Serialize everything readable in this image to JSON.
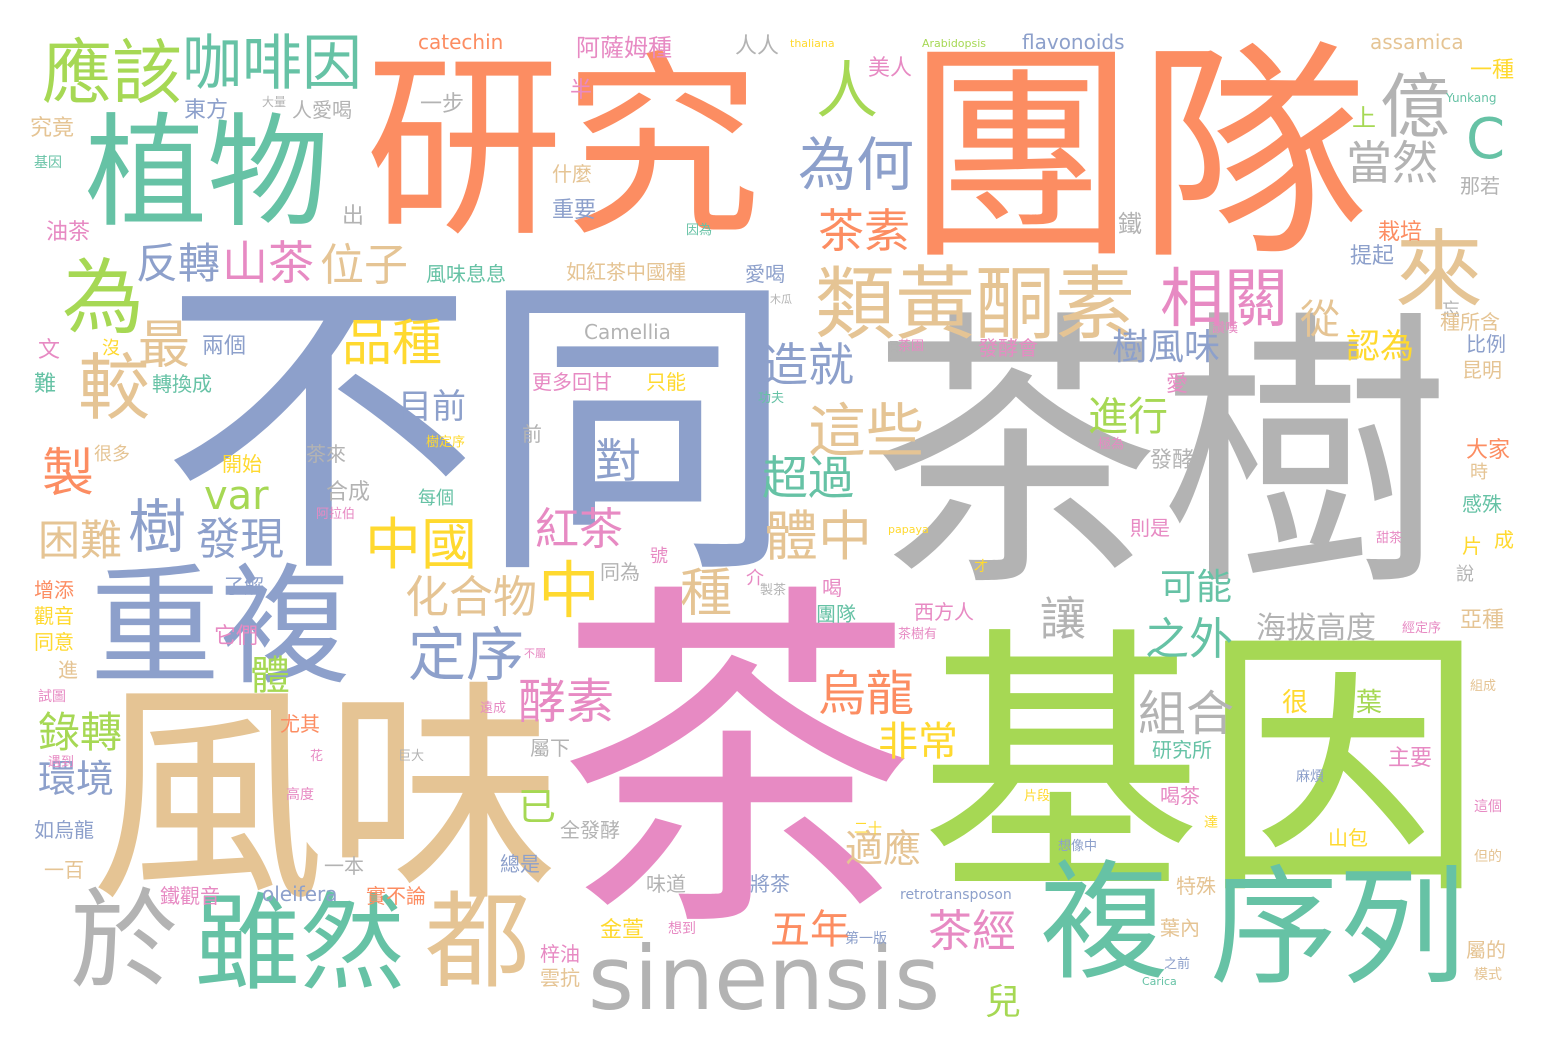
{
  "palette": {
    "orange": "#fc8d62",
    "blue": "#8da0cb",
    "pink": "#e78ac3",
    "green": "#a6d854",
    "yellow": "#ffd92f",
    "tan": "#e5c494",
    "gray": "#b3b3b3",
    "teal": "#66c2a5"
  },
  "words": [
    {
      "text": "研究",
      "color": "orange"
    },
    {
      "text": "團隊",
      "color": "orange"
    },
    {
      "text": "不同",
      "color": "blue"
    },
    {
      "text": "茶樹",
      "color": "gray"
    },
    {
      "text": "茶",
      "color": "pink"
    },
    {
      "text": "基因",
      "color": "green"
    },
    {
      "text": "風味",
      "color": "tan"
    },
    {
      "text": "重複",
      "color": "blue"
    },
    {
      "text": "植物",
      "color": "teal"
    },
    {
      "text": "序列",
      "color": "teal"
    },
    {
      "text": "複",
      "color": "teal"
    },
    {
      "text": "sinensis",
      "color": "gray"
    },
    {
      "text": "於",
      "color": "gray"
    },
    {
      "text": "雖然",
      "color": "teal"
    },
    {
      "text": "都",
      "color": "tan"
    },
    {
      "text": "類黃酮素",
      "color": "tan"
    },
    {
      "text": "應該",
      "color": "green"
    },
    {
      "text": "咖啡因",
      "color": "teal"
    },
    {
      "text": "為",
      "color": "green"
    },
    {
      "text": "較",
      "color": "tan"
    },
    {
      "text": "來",
      "color": "tan"
    },
    {
      "text": "億",
      "color": "gray"
    },
    {
      "text": "相關",
      "color": "pink"
    },
    {
      "text": "為何",
      "color": "blue"
    },
    {
      "text": "人",
      "color": "green"
    },
    {
      "text": "C",
      "color": "teal"
    },
    {
      "text": "當然",
      "color": "gray"
    },
    {
      "text": "茶素",
      "color": "orange"
    },
    {
      "text": "反轉",
      "color": "blue"
    },
    {
      "text": "山茶",
      "color": "pink"
    },
    {
      "text": "位子",
      "color": "tan"
    },
    {
      "text": "品種",
      "color": "yellow"
    },
    {
      "text": "最",
      "color": "tan"
    },
    {
      "text": "造就",
      "color": "blue"
    },
    {
      "text": "這些",
      "color": "tan"
    },
    {
      "text": "樹風味",
      "color": "blue"
    },
    {
      "text": "進行",
      "color": "green"
    },
    {
      "text": "從",
      "color": "tan"
    },
    {
      "text": "認為",
      "color": "yellow"
    },
    {
      "text": "對",
      "color": "blue"
    },
    {
      "text": "目前",
      "color": "blue"
    },
    {
      "text": "製",
      "color": "orange"
    },
    {
      "text": "var",
      "color": "green"
    },
    {
      "text": "樹",
      "color": "blue"
    },
    {
      "text": "發現",
      "color": "blue"
    },
    {
      "text": "中國",
      "color": "yellow"
    },
    {
      "text": "紅茶",
      "color": "pink"
    },
    {
      "text": "體中",
      "color": "tan"
    },
    {
      "text": "超過",
      "color": "teal"
    },
    {
      "text": "困難",
      "color": "tan"
    },
    {
      "text": "中",
      "color": "yellow"
    },
    {
      "text": "化合物",
      "color": "tan"
    },
    {
      "text": "種",
      "color": "tan"
    },
    {
      "text": "定序",
      "color": "blue"
    },
    {
      "text": "可能",
      "color": "teal"
    },
    {
      "text": "之外",
      "color": "teal"
    },
    {
      "text": "讓",
      "color": "gray"
    },
    {
      "text": "海拔高度",
      "color": "gray"
    },
    {
      "text": "酵素",
      "color": "pink"
    },
    {
      "text": "烏龍",
      "color": "orange"
    },
    {
      "text": "組合",
      "color": "gray"
    },
    {
      "text": "非常",
      "color": "yellow"
    },
    {
      "text": "錄轉",
      "color": "green"
    },
    {
      "text": "環境",
      "color": "blue"
    },
    {
      "text": "體",
      "color": "green"
    },
    {
      "text": "已",
      "color": "green"
    },
    {
      "text": "適應",
      "color": "tan"
    },
    {
      "text": "五年",
      "color": "orange"
    },
    {
      "text": "茶經",
      "color": "pink"
    },
    {
      "text": "兒",
      "color": "green"
    },
    {
      "text": "catechin",
      "color": "orange"
    },
    {
      "text": "flavonoids",
      "color": "blue"
    },
    {
      "text": "assamica",
      "color": "tan"
    },
    {
      "text": "阿薩姆種",
      "color": "pink"
    },
    {
      "text": "人人",
      "color": "gray"
    },
    {
      "text": "thaliana",
      "color": "yellow"
    },
    {
      "text": "Arabidopsis",
      "color": "green"
    },
    {
      "text": "美人",
      "color": "pink"
    },
    {
      "text": "東方",
      "color": "blue"
    },
    {
      "text": "人愛喝",
      "color": "gray"
    },
    {
      "text": "大量",
      "color": "gray"
    },
    {
      "text": "一步",
      "color": "gray"
    },
    {
      "text": "半",
      "color": "pink"
    },
    {
      "text": "一種",
      "color": "yellow"
    },
    {
      "text": "上",
      "color": "green"
    },
    {
      "text": "Yunkang",
      "color": "teal"
    },
    {
      "text": "究竟",
      "color": "tan"
    },
    {
      "text": "基因",
      "color": "teal"
    },
    {
      "text": "什麼",
      "color": "tan"
    },
    {
      "text": "那若",
      "color": "gray"
    },
    {
      "text": "出",
      "color": "gray"
    },
    {
      "text": "重要",
      "color": "blue"
    },
    {
      "text": "栽培",
      "color": "orange"
    },
    {
      "text": "油茶",
      "color": "pink"
    },
    {
      "text": "因為",
      "color": "teal"
    },
    {
      "text": "鐵",
      "color": "gray"
    },
    {
      "text": "風味息息",
      "color": "teal"
    },
    {
      "text": "如紅茶中國種",
      "color": "tan"
    },
    {
      "text": "愛喝",
      "color": "blue"
    },
    {
      "text": "提起",
      "color": "blue"
    },
    {
      "text": "木瓜",
      "color": "gray"
    },
    {
      "text": "Camellia",
      "color": "gray"
    },
    {
      "text": "忘",
      "color": "gray"
    },
    {
      "text": "種所含",
      "color": "tan"
    },
    {
      "text": "文",
      "color": "pink"
    },
    {
      "text": "沒",
      "color": "yellow"
    },
    {
      "text": "兩個",
      "color": "blue"
    },
    {
      "text": "則",
      "color": "gray"
    },
    {
      "text": "茶園",
      "color": "pink"
    },
    {
      "text": "發酵會",
      "color": "pink"
    },
    {
      "text": "讚嘆",
      "color": "pink"
    },
    {
      "text": "比例",
      "color": "blue"
    },
    {
      "text": "難",
      "color": "teal"
    },
    {
      "text": "轉換成",
      "color": "teal"
    },
    {
      "text": "更多回甘",
      "color": "pink"
    },
    {
      "text": "只能",
      "color": "yellow"
    },
    {
      "text": "愛",
      "color": "pink"
    },
    {
      "text": "昆明",
      "color": "tan"
    },
    {
      "text": "功夫",
      "color": "teal"
    },
    {
      "text": "很多",
      "color": "tan"
    },
    {
      "text": "樹定序",
      "color": "yellow"
    },
    {
      "text": "茶來",
      "color": "gray"
    },
    {
      "text": "前",
      "color": "gray"
    },
    {
      "text": "極為",
      "color": "pink"
    },
    {
      "text": "開始",
      "color": "yellow"
    },
    {
      "text": "發酵",
      "color": "gray"
    },
    {
      "text": "大家",
      "color": "orange"
    },
    {
      "text": "時",
      "color": "tan"
    },
    {
      "text": "合成",
      "color": "gray"
    },
    {
      "text": "每個",
      "color": "teal"
    },
    {
      "text": "阿拉伯",
      "color": "pink"
    },
    {
      "text": "感殊",
      "color": "teal"
    },
    {
      "text": "則是",
      "color": "pink"
    },
    {
      "text": "papaya",
      "color": "yellow"
    },
    {
      "text": "甜茶",
      "color": "pink"
    },
    {
      "text": "片",
      "color": "yellow"
    },
    {
      "text": "成",
      "color": "yellow"
    },
    {
      "text": "說",
      "color": "gray"
    },
    {
      "text": "增添",
      "color": "orange"
    },
    {
      "text": "了解",
      "color": "blue"
    },
    {
      "text": "同為",
      "color": "gray"
    },
    {
      "text": "號",
      "color": "pink"
    },
    {
      "text": "介",
      "color": "pink"
    },
    {
      "text": "製茶",
      "color": "gray"
    },
    {
      "text": "喝",
      "color": "pink"
    },
    {
      "text": "才",
      "color": "yellow"
    },
    {
      "text": "觀音",
      "color": "yellow"
    },
    {
      "text": "它們",
      "color": "pink"
    },
    {
      "text": "團隊",
      "color": "teal"
    },
    {
      "text": "西方人",
      "color": "pink"
    },
    {
      "text": "茶樹有",
      "color": "pink"
    },
    {
      "text": "經定序",
      "color": "pink"
    },
    {
      "text": "亞種",
      "color": "tan"
    },
    {
      "text": "同意",
      "color": "yellow"
    },
    {
      "text": "進",
      "color": "tan"
    },
    {
      "text": "不屬",
      "color": "pink"
    },
    {
      "text": "組成",
      "color": "tan"
    },
    {
      "text": "試圖",
      "color": "pink"
    },
    {
      "text": "尤其",
      "color": "orange"
    },
    {
      "text": "遠成",
      "color": "pink"
    },
    {
      "text": "屬下",
      "color": "gray"
    },
    {
      "text": "很",
      "color": "yellow"
    },
    {
      "text": "葉",
      "color": "green"
    },
    {
      "text": "遇到",
      "color": "pink"
    },
    {
      "text": "花",
      "color": "pink"
    },
    {
      "text": "巨大",
      "color": "gray"
    },
    {
      "text": "研究所",
      "color": "teal"
    },
    {
      "text": "主要",
      "color": "pink"
    },
    {
      "text": "麻煩",
      "color": "blue"
    },
    {
      "text": "高度",
      "color": "pink"
    },
    {
      "text": "片段",
      "color": "yellow"
    },
    {
      "text": "喝茶",
      "color": "pink"
    },
    {
      "text": "這個",
      "color": "pink"
    },
    {
      "text": "如烏龍",
      "color": "blue"
    },
    {
      "text": "二十",
      "color": "yellow"
    },
    {
      "text": "全發酵",
      "color": "gray"
    },
    {
      "text": "山包",
      "color": "yellow"
    },
    {
      "text": "達",
      "color": "yellow"
    },
    {
      "text": "想像中",
      "color": "blue"
    },
    {
      "text": "但的",
      "color": "tan"
    },
    {
      "text": "一百",
      "color": "tan"
    },
    {
      "text": "一本",
      "color": "gray"
    },
    {
      "text": "總是",
      "color": "blue"
    },
    {
      "text": "特殊",
      "color": "tan"
    },
    {
      "text": "鐵觀音",
      "color": "pink"
    },
    {
      "text": "oleifera",
      "color": "blue"
    },
    {
      "text": "實不論",
      "color": "orange"
    },
    {
      "text": "味道",
      "color": "gray"
    },
    {
      "text": "將茶",
      "color": "blue"
    },
    {
      "text": "retrotransposon",
      "color": "blue"
    },
    {
      "text": "金萱",
      "color": "yellow"
    },
    {
      "text": "想到",
      "color": "pink"
    },
    {
      "text": "第一版",
      "color": "blue"
    },
    {
      "text": "葉內",
      "color": "tan"
    },
    {
      "text": "屬的",
      "color": "tan"
    },
    {
      "text": "梓油",
      "color": "pink"
    },
    {
      "text": "雲抗",
      "color": "tan"
    },
    {
      "text": "之前",
      "color": "blue"
    },
    {
      "text": "Carica",
      "color": "teal"
    },
    {
      "text": "模式",
      "color": "tan"
    }
  ]
}
